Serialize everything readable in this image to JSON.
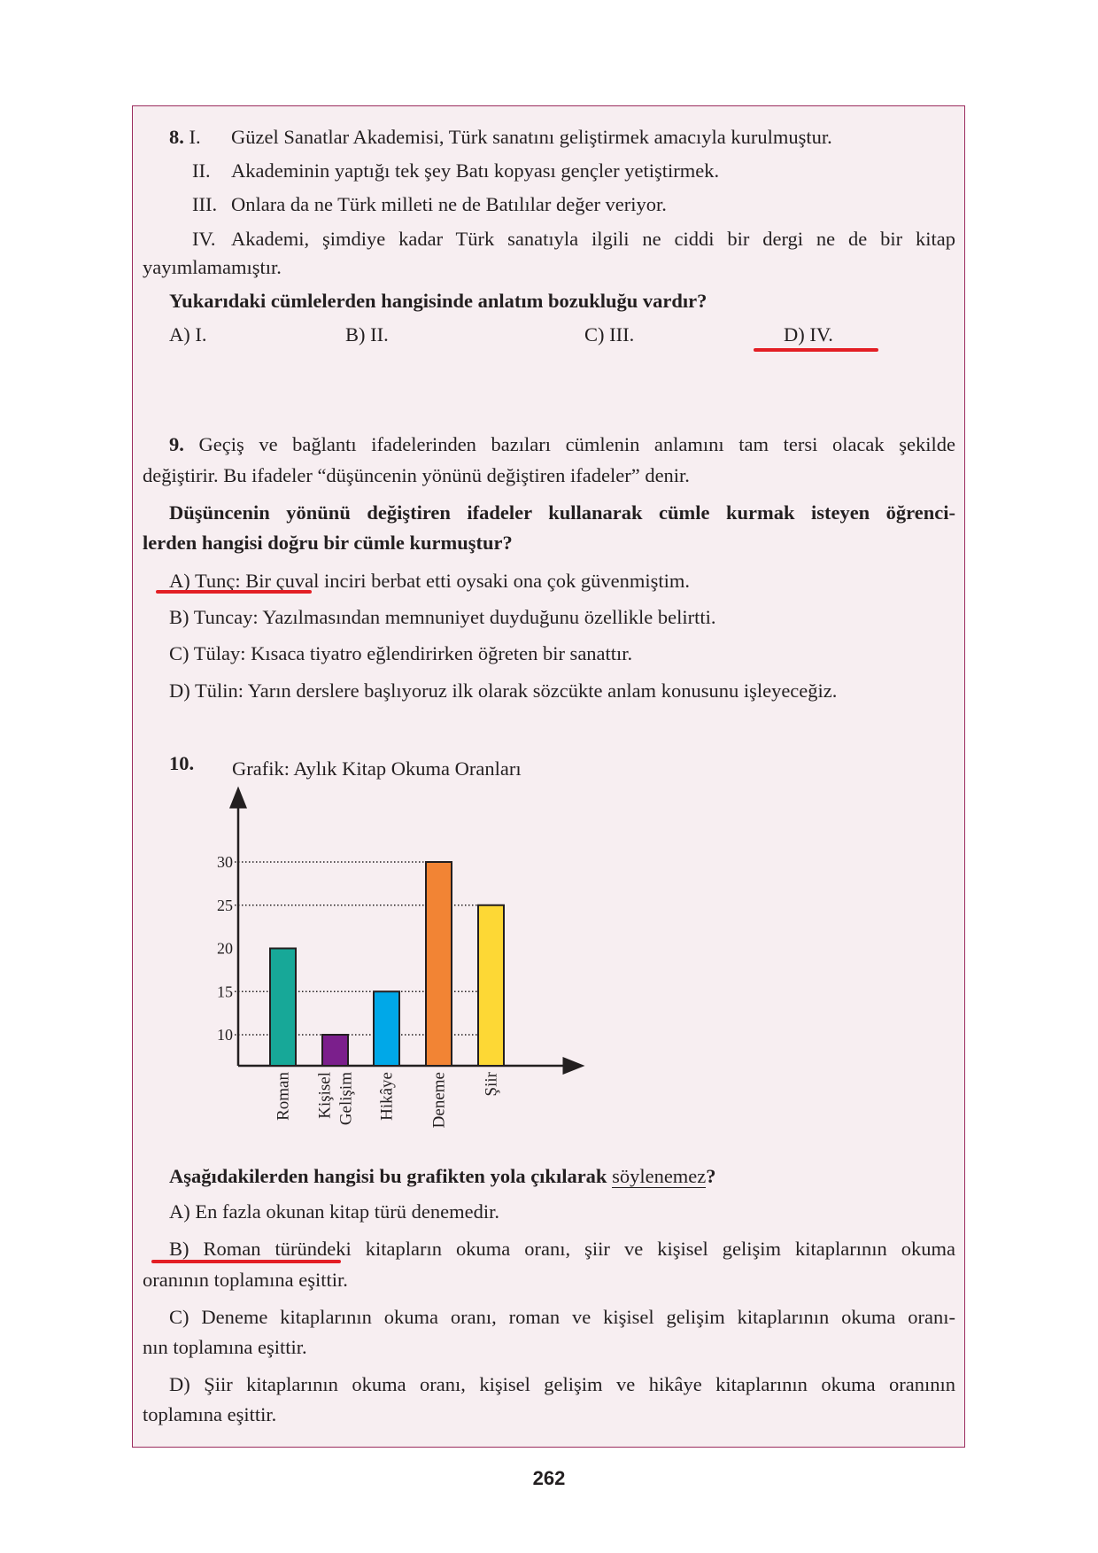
{
  "q8": {
    "number": "8.",
    "items": [
      {
        "roman": "I.",
        "text": "Güzel Sanatlar Akademisi, Türk sanatını geliştirmek amacıyla kurulmuştur."
      },
      {
        "roman": "II.",
        "text": "Akademinin yaptığı tek şey Batı kopyası gençler yetiştirmek."
      },
      {
        "roman": "III.",
        "text": "Onlara da ne Türk milleti ne de Batılılar değer veriyor."
      },
      {
        "roman": "IV.",
        "text": "Akademi, şimdiye kadar Türk sanatıyla ilgili ne ciddi bir dergi ne de bir kitap",
        "text_cont": "yayımlamamıştır."
      }
    ],
    "question": "Yukarıdaki cümlelerden hangisinde anlatım bozukluğu vardır?",
    "options": [
      "A) I.",
      "B) II.",
      "C) III.",
      "D) IV."
    ],
    "marked_option": "D"
  },
  "q9": {
    "number": "9.",
    "intro_1": "Geçiş ve bağlantı ifadelerinden bazıları cümlenin anlamını tam tersi olacak şekilde",
    "intro_2": "değiştirir. Bu ifadeler “düşüncenin yönünü değiştiren ifadeler” denir.",
    "question_1": "Düşüncenin yönünü değiştiren ifadeler kullanarak cümle kurmak isteyen öğrenci-",
    "question_2": "lerden hangisi doğru bir cümle kurmuştur?",
    "options": [
      "A) Tunç: Bir çuval inciri berbat etti oysaki ona çok güvenmiştim.",
      "B) Tuncay: Yazılmasından memnuniyet duyduğunu özellikle belirtti.",
      "C) Tülay: Kısaca tiyatro eğlendirirken öğreten bir sanattır.",
      "D) Tülin: Yarın derslere başlıyoruz ilk olarak sözcükte anlam konusunu işleyeceğiz."
    ],
    "marked_option": "A"
  },
  "q10": {
    "number": "10.",
    "question_pre": "Aşağıdakilerden hangisi bu grafikten yola çıkılarak ",
    "question_underlined": "söylenemez",
    "question_post": "?",
    "options": [
      {
        "l1": "B) Roman türündeki kitapların okuma oranı, şiir ve kişisel gelişim kitaplarının okuma",
        "l2": "oranının toplamına eşittir."
      },
      {
        "l1": "C) Deneme kitaplarının okuma oranı, roman ve kişisel gelişim kitaplarının okuma oranı-",
        "l2": "nın toplamına eşittir."
      },
      {
        "l1": "D) Şiir kitaplarının okuma oranı, kişisel gelişim ve hikâye kitaplarının okuma oranının",
        "l2": "toplamına eşittir."
      }
    ],
    "option_a": "A) En fazla okunan kitap türü denemedir.",
    "marked_option": "B"
  },
  "chart_data": {
    "type": "bar",
    "title": "Grafik: Aylık Kitap Okuma Oranları",
    "categories": [
      "Roman",
      "Kişisel Gelişim",
      "Hikâye",
      "Deneme",
      "Şiir"
    ],
    "category_lines": [
      [
        "Roman"
      ],
      [
        "Kişisel",
        "Gelişim"
      ],
      [
        "Hikâye"
      ],
      [
        "Deneme"
      ],
      [
        "Şiir"
      ]
    ],
    "values": [
      20,
      10,
      15,
      30,
      25
    ],
    "colors": [
      "#17a898",
      "#7b1f8c",
      "#00a8e8",
      "#f28434",
      "#fdd835"
    ],
    "yticks": [
      10,
      15,
      20,
      25,
      30
    ],
    "ylim": [
      6,
      38
    ],
    "xlabel": "",
    "ylabel": "",
    "grid": "dotted reference lines at 10, 15, 25, 30"
  },
  "page_number": "262",
  "colors": {
    "frame": "#9b2d5e",
    "background": "#f7eef1",
    "answer_mark": "#e31e24"
  }
}
